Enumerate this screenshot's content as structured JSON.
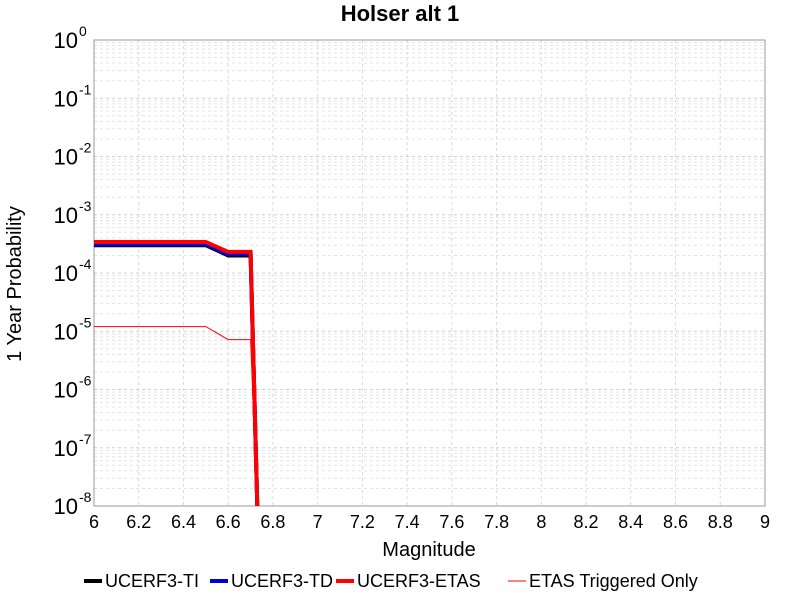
{
  "chart_data": {
    "type": "line",
    "title": "Holser alt 1",
    "xlabel": "Magnitude",
    "ylabel": "1 Year Probability",
    "xlim": [
      6,
      9
    ],
    "ylim": [
      1e-08,
      1
    ],
    "yscale": "log",
    "grid": true,
    "legend_position": "bottom",
    "x_ticks": [
      "6",
      "6.2",
      "6.4",
      "6.6",
      "6.8",
      "7",
      "7.2",
      "7.4",
      "7.6",
      "7.8",
      "8",
      "8.2",
      "8.4",
      "8.6",
      "8.8",
      "9"
    ],
    "y_ticks": [
      {
        "base": "10",
        "exp": "0",
        "value": 1
      },
      {
        "base": "10",
        "exp": "-1",
        "value": 0.1
      },
      {
        "base": "10",
        "exp": "-2",
        "value": 0.01
      },
      {
        "base": "10",
        "exp": "-3",
        "value": 0.001
      },
      {
        "base": "10",
        "exp": "-4",
        "value": 0.0001
      },
      {
        "base": "10",
        "exp": "-5",
        "value": 1e-05
      },
      {
        "base": "10",
        "exp": "-6",
        "value": 1e-06
      },
      {
        "base": "10",
        "exp": "-7",
        "value": 1e-07
      },
      {
        "base": "10",
        "exp": "-8",
        "value": 1e-08
      }
    ],
    "series": [
      {
        "name": "UCERF3-TI",
        "color": "#000000",
        "style": "thick",
        "x": [
          6.0,
          6.5,
          6.6,
          6.7,
          6.73
        ],
        "y": [
          0.0003,
          0.0003,
          0.0002,
          0.0002,
          1e-09
        ]
      },
      {
        "name": "UCERF3-TD",
        "color": "#0000dd",
        "style": "thick",
        "x": [
          6.0,
          6.5,
          6.6,
          6.7,
          6.73
        ],
        "y": [
          0.00031,
          0.00031,
          0.00021,
          0.00021,
          1e-09
        ]
      },
      {
        "name": "UCERF3-ETAS",
        "color": "#ff0000",
        "style": "thick",
        "x": [
          6.0,
          6.5,
          6.6,
          6.7,
          6.73
        ],
        "y": [
          0.00034,
          0.00034,
          0.00023,
          0.00023,
          1e-09
        ]
      },
      {
        "name": "ETAS Triggered Only",
        "color": "#ff0000",
        "style": "thin",
        "x": [
          6.0,
          6.5,
          6.6,
          6.7,
          6.73
        ],
        "y": [
          1.2e-05,
          1.2e-05,
          7.2e-06,
          7.2e-06,
          1e-09
        ]
      }
    ]
  }
}
